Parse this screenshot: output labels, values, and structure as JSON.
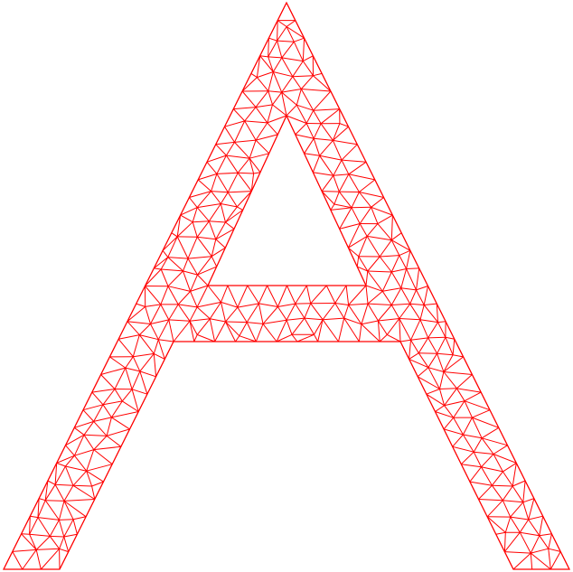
{
  "figure": {
    "title": "",
    "shape": "letter-A",
    "stroke_color": "#ff0000",
    "background_color": "#ffffff",
    "element_type": "triangle",
    "mesh_style": "wireframe"
  }
}
